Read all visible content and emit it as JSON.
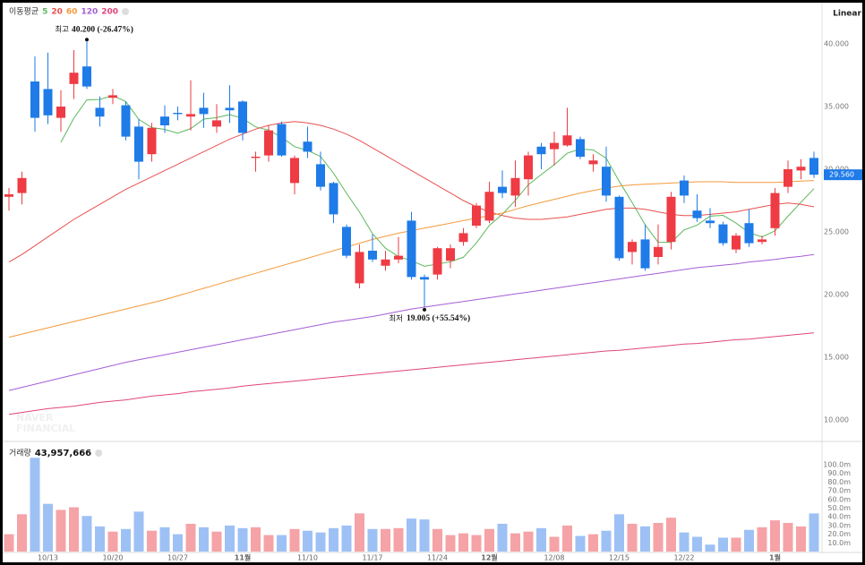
{
  "chart_data": [
    {
      "type": "candlestick",
      "legend_title": "이동평균",
      "scale": "Linear",
      "watermark": [
        "NAVER",
        "FINANCIAL"
      ],
      "categories": [
        null,
        null,
        null,
        "10/13",
        null,
        null,
        null,
        null,
        "10/20",
        null,
        null,
        null,
        null,
        "10/27",
        null,
        null,
        null,
        null,
        "11월",
        null,
        null,
        null,
        null,
        "11/10",
        null,
        null,
        null,
        null,
        "11/17",
        null,
        null,
        null,
        null,
        "11/24",
        null,
        null,
        null,
        "12월",
        null,
        null,
        null,
        null,
        "12/08",
        null,
        null,
        null,
        null,
        "12/15",
        null,
        null,
        null,
        null,
        "12/22",
        null,
        null,
        null,
        null,
        null,
        null,
        "1월",
        null,
        null,
        null
      ],
      "open": [
        27800,
        28100,
        37000,
        36400,
        34100,
        36800,
        38200,
        34900,
        35700,
        35100,
        33400,
        31200,
        34200,
        34500,
        34200,
        34900,
        33400,
        34900,
        35400,
        30900,
        31100,
        33600,
        28900,
        32200,
        30400,
        28900,
        25400,
        20900,
        23500,
        22300,
        22800,
        25900,
        21400,
        21600,
        22700,
        24200,
        25500,
        25900,
        28600,
        27900,
        29200,
        31800,
        31600,
        31900,
        32400,
        30400,
        30200,
        27800,
        23400,
        24400,
        23000,
        24200,
        29100,
        26700,
        25900,
        25600,
        23600,
        25700,
        24200,
        25300,
        28600,
        29900,
        30900
      ],
      "high": [
        28500,
        29800,
        39000,
        39300,
        36300,
        39500,
        40200,
        35800,
        36400,
        35400,
        34000,
        33700,
        35100,
        35000,
        37100,
        36100,
        35200,
        36700,
        35500,
        31400,
        33500,
        33800,
        31100,
        33400,
        31400,
        29000,
        25600,
        24000,
        24800,
        23500,
        24600,
        26600,
        21600,
        23800,
        24000,
        25300,
        27300,
        29000,
        29900,
        30700,
        31400,
        32100,
        33000,
        34900,
        32600,
        31200,
        31800,
        27900,
        24400,
        25600,
        25600,
        28200,
        29500,
        28000,
        26900,
        25800,
        24900,
        26800,
        24700,
        28500,
        30700,
        30800,
        31400
      ],
      "low": [
        26700,
        27200,
        33000,
        33600,
        33000,
        35600,
        36400,
        33400,
        35200,
        32300,
        29200,
        30600,
        32900,
        33900,
        33100,
        33300,
        32900,
        33700,
        32300,
        29800,
        30600,
        31000,
        28000,
        30900,
        28300,
        25700,
        22900,
        20500,
        22600,
        21900,
        22500,
        21200,
        19005,
        21200,
        22100,
        23900,
        25300,
        25700,
        27700,
        27000,
        27900,
        30000,
        30300,
        31800,
        30800,
        29800,
        27400,
        22700,
        22400,
        21900,
        22400,
        23600,
        27300,
        25800,
        25300,
        23900,
        23300,
        23800,
        24000,
        24700,
        28100,
        29200,
        29300
      ],
      "close": [
        28000,
        29300,
        34100,
        34300,
        35000,
        37700,
        36600,
        34200,
        35900,
        32600,
        30600,
        33300,
        33500,
        34400,
        34400,
        34400,
        33900,
        34700,
        32900,
        31000,
        33100,
        31100,
        30900,
        31400,
        28600,
        26400,
        23100,
        23400,
        22800,
        22800,
        23100,
        21400,
        21200,
        23700,
        23700,
        24900,
        27100,
        28200,
        28100,
        29300,
        31100,
        31200,
        32100,
        32700,
        31000,
        30700,
        27900,
        22900,
        24200,
        22100,
        23800,
        27800,
        27900,
        26100,
        25700,
        24100,
        24700,
        24100,
        24400,
        28100,
        30000,
        30200,
        29560
      ],
      "close_labels": [
        null,
        null,
        null,
        null,
        null,
        null,
        null,
        null,
        null,
        null,
        null,
        null,
        null,
        null,
        null,
        null,
        null,
        null,
        null,
        null,
        null,
        null,
        null,
        null,
        null,
        null,
        null,
        null,
        null,
        null,
        null,
        null,
        null,
        null,
        null,
        null,
        null,
        null,
        null,
        null,
        null,
        null,
        null,
        null,
        null,
        null,
        null,
        null,
        null,
        null,
        null,
        null,
        null,
        null,
        null,
        null,
        null,
        null,
        null,
        null,
        null,
        null,
        "29.560"
      ],
      "up_color": "#ee3b44",
      "down_color": "#1e7be8",
      "series": [
        {
          "name": "5",
          "color": "#5cb85c",
          "values": [
            null,
            null,
            null,
            null,
            32140,
            34080,
            35540,
            35560,
            35880,
            35400,
            33980,
            33320,
            33180,
            32880,
            33240,
            34000,
            34120,
            34360,
            34060,
            33380,
            33120,
            32560,
            31800,
            31500,
            31020,
            29680,
            28080,
            26580,
            24860,
            23700,
            23040,
            22700,
            22260,
            22440,
            22620,
            22980,
            24120,
            25520,
            26400,
            27520,
            28760,
            29580,
            30360,
            31280,
            31620,
            31540,
            30880,
            29040,
            27340,
            25560,
            24180,
            24160,
            25160,
            25540,
            26260,
            26320,
            25700,
            24940,
            24600,
            25080,
            26260,
            27360,
            28452
          ]
        },
        {
          "name": "20",
          "color": "#e8514f",
          "values": [
            22600,
            23200,
            23900,
            24600,
            25300,
            26000,
            26600,
            27200,
            27800,
            28400,
            28900,
            29400,
            29900,
            30400,
            30900,
            31400,
            31900,
            32400,
            32800,
            33200,
            33500,
            33700,
            33800,
            33700,
            33500,
            33200,
            32800,
            32300,
            31700,
            31100,
            30500,
            29900,
            29300,
            28700,
            28100,
            27500,
            27000,
            26600,
            26300,
            26100,
            26000,
            26000,
            26100,
            26200,
            26400,
            26600,
            26800,
            26900,
            26900,
            26800,
            26600,
            26400,
            26300,
            26300,
            26400,
            26500,
            26600,
            26800,
            27000,
            27200,
            27300,
            27200,
            27000
          ]
        },
        {
          "name": "60",
          "color": "#f39a3b",
          "values": [
            16600,
            16850,
            17100,
            17350,
            17600,
            17850,
            18100,
            18350,
            18600,
            18850,
            19100,
            19350,
            19600,
            19900,
            20200,
            20500,
            20800,
            21100,
            21400,
            21700,
            22000,
            22300,
            22600,
            22900,
            23200,
            23500,
            23800,
            24100,
            24400,
            24650,
            24900,
            25100,
            25300,
            25500,
            25700,
            25900,
            26100,
            26300,
            26500,
            26800,
            27100,
            27350,
            27600,
            27850,
            28100,
            28300,
            28500,
            28650,
            28750,
            28800,
            28850,
            28900,
            28950,
            29000,
            29000,
            29000,
            28950,
            28950,
            28950,
            28950,
            29000,
            29050,
            29100
          ]
        },
        {
          "name": "120",
          "color": "#a45ed6",
          "values": [
            12350,
            12600,
            12850,
            13100,
            13350,
            13600,
            13850,
            14100,
            14350,
            14600,
            14800,
            15000,
            15200,
            15400,
            15600,
            15800,
            16000,
            16200,
            16400,
            16600,
            16800,
            17000,
            17200,
            17400,
            17600,
            17800,
            17950,
            18100,
            18250,
            18450,
            18650,
            18850,
            19000,
            19150,
            19300,
            19450,
            19600,
            19750,
            19900,
            20050,
            20200,
            20350,
            20500,
            20650,
            20800,
            20950,
            21100,
            21250,
            21400,
            21550,
            21700,
            21850,
            22000,
            22150,
            22250,
            22350,
            22450,
            22600,
            22700,
            22800,
            22950,
            23050,
            23200
          ]
        },
        {
          "name": "200",
          "color": "#e0457b",
          "values": [
            10450,
            10600,
            10750,
            10900,
            11000,
            11100,
            11250,
            11400,
            11500,
            11600,
            11750,
            11900,
            12000,
            12100,
            12250,
            12350,
            12450,
            12550,
            12700,
            12800,
            12900,
            13000,
            13100,
            13200,
            13300,
            13400,
            13500,
            13600,
            13700,
            13800,
            13900,
            14000,
            14100,
            14200,
            14300,
            14400,
            14500,
            14600,
            14700,
            14800,
            14900,
            15000,
            15100,
            15200,
            15300,
            15400,
            15500,
            15550,
            15650,
            15750,
            15850,
            15950,
            16050,
            16100,
            16200,
            16300,
            16400,
            16450,
            16550,
            16650,
            16750,
            16850,
            16950
          ]
        }
      ],
      "annotations": {
        "high": {
          "label": "최고",
          "text": "40.200 (-26.47%)"
        },
        "low": {
          "label": "최저",
          "text": "19.005 (+55.54%)"
        }
      },
      "ylim": [
        8357,
        43143
      ],
      "yticks": [
        {
          "value": 10000,
          "label": "10.000"
        },
        {
          "value": 15000,
          "label": "15.000"
        },
        {
          "value": 20000,
          "label": "20.000"
        },
        {
          "value": 25000,
          "label": "25.000"
        },
        {
          "value": 30000,
          "label": "30.000"
        },
        {
          "value": 35000,
          "label": "35.000"
        },
        {
          "value": 40000,
          "label": "40.000"
        }
      ]
    },
    {
      "type": "bar",
      "title": "거래량",
      "up_color": "#f5a3a7",
      "down_color": "#9ec1f5",
      "values": [
        20,
        43,
        108,
        55,
        48,
        51,
        41,
        29,
        23,
        26,
        46,
        24,
        28,
        20,
        32,
        28,
        23,
        30,
        27,
        28,
        19,
        19,
        26,
        24,
        22,
        27,
        30,
        44,
        26,
        26,
        27,
        38,
        37,
        26,
        19,
        21,
        19,
        26,
        32,
        21,
        23,
        27,
        17,
        30,
        18,
        20,
        24,
        43,
        32,
        29,
        33,
        39,
        22,
        17,
        8,
        16,
        16,
        25,
        28,
        36,
        33,
        29,
        43.957666
      ],
      "value_labels": [
        null,
        null,
        null,
        null,
        null,
        null,
        null,
        null,
        null,
        null,
        null,
        null,
        null,
        null,
        null,
        null,
        null,
        null,
        null,
        null,
        null,
        null,
        null,
        null,
        null,
        null,
        null,
        null,
        null,
        null,
        null,
        null,
        null,
        null,
        null,
        null,
        null,
        null,
        null,
        null,
        null,
        null,
        null,
        null,
        null,
        null,
        null,
        null,
        null,
        null,
        null,
        null,
        null,
        null,
        null,
        null,
        null,
        null,
        null,
        null,
        null,
        null,
        "43,957,666"
      ],
      "ylim": [
        0,
        122.7
      ],
      "yticks": [
        {
          "value": 10,
          "label": "10.0m"
        },
        {
          "value": 20,
          "label": "20.0m"
        },
        {
          "value": 30,
          "label": "30.0m"
        },
        {
          "value": 40,
          "label": "40.0m"
        },
        {
          "value": 50,
          "label": "50.0m"
        },
        {
          "value": 60,
          "label": "60.0m"
        },
        {
          "value": 70,
          "label": "70.0m"
        },
        {
          "value": 80,
          "label": "80.0m"
        },
        {
          "value": 90,
          "label": "90.0m"
        },
        {
          "value": 100,
          "label": "100.0m"
        }
      ]
    }
  ]
}
